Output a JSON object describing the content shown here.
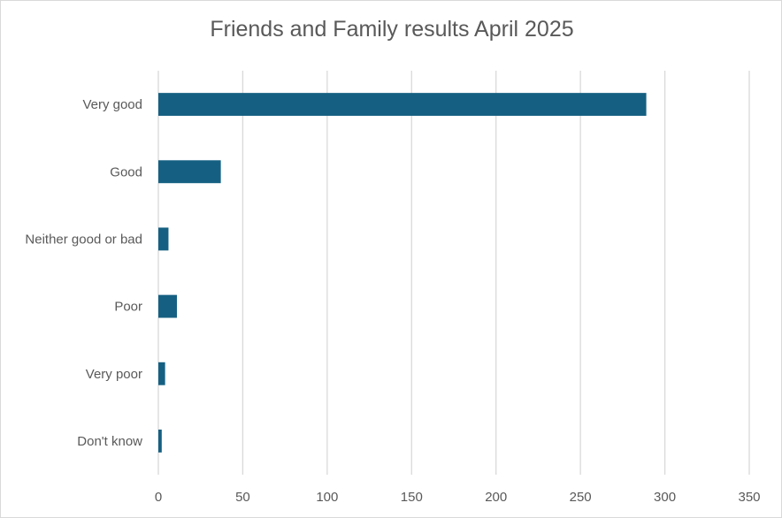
{
  "chart_data": {
    "type": "bar",
    "orientation": "horizontal",
    "title": "Friends and Family results April 2025",
    "categories": [
      "Very good",
      "Good",
      "Neither good or bad",
      "Poor",
      "Very poor",
      "Don't know"
    ],
    "values": [
      289,
      37,
      6,
      11,
      4,
      2
    ],
    "xlim": [
      0,
      350
    ],
    "xticks": [
      0,
      50,
      100,
      150,
      200,
      250,
      300,
      350
    ],
    "xlabel": "",
    "ylabel": "",
    "grid": "vertical",
    "legend": "none",
    "bar_color": "#156082",
    "grid_color": "#d9d9d9"
  }
}
